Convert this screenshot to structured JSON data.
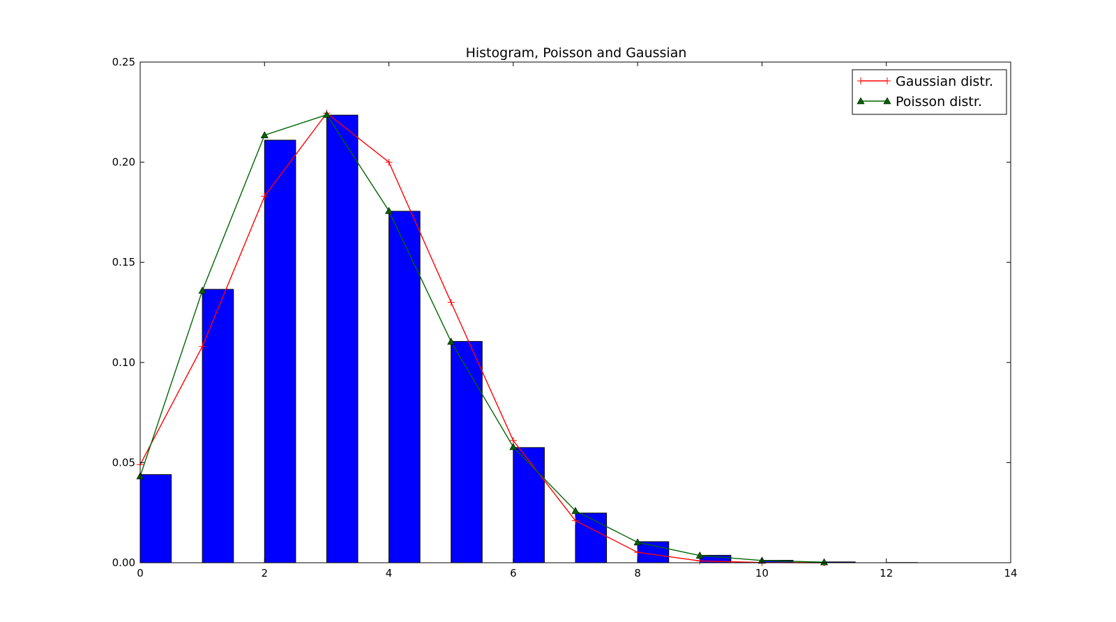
{
  "chart_data": {
    "type": "bar",
    "title": "Histogram, Poisson and Gaussian",
    "xlabel": "",
    "ylabel": "",
    "xlim": [
      0,
      14
    ],
    "ylim": [
      0,
      0.25
    ],
    "x_ticks": [
      "0",
      "2",
      "4",
      "6",
      "8",
      "10",
      "12",
      "14"
    ],
    "y_ticks": [
      "0.00",
      "0.05",
      "0.10",
      "0.15",
      "0.20",
      "0.25"
    ],
    "grid": false,
    "legend_position": "top-right",
    "bars": {
      "color": "#0000ff",
      "width": 0.5,
      "x": [
        0,
        1,
        2,
        3,
        4,
        5,
        6,
        7,
        8,
        9,
        10,
        11,
        12
      ],
      "values": [
        0.044,
        0.1365,
        0.211,
        0.2235,
        0.1755,
        0.1105,
        0.0575,
        0.0248,
        0.0105,
        0.0037,
        0.0012,
        0.0004,
        0.0001
      ]
    },
    "series": [
      {
        "name": "Gaussian distr.",
        "color": "#ff0000",
        "marker": "plus",
        "x": [
          0,
          1,
          2,
          3,
          4,
          5,
          6,
          7,
          8,
          9,
          10,
          11
        ],
        "values": [
          0.049,
          0.108,
          0.183,
          0.2245,
          0.2,
          0.13,
          0.061,
          0.021,
          0.0052,
          0.0009,
          0.0001,
          0.0
        ]
      },
      {
        "name": "Poisson distr.",
        "color": "#006400",
        "marker": "triangle",
        "x": [
          0,
          1,
          2,
          3,
          4,
          5,
          6,
          7,
          8,
          9,
          10,
          11
        ],
        "values": [
          0.0432,
          0.1359,
          0.2135,
          0.2237,
          0.1757,
          0.1104,
          0.0578,
          0.0259,
          0.0102,
          0.0036,
          0.0011,
          0.0003
        ]
      }
    ]
  }
}
